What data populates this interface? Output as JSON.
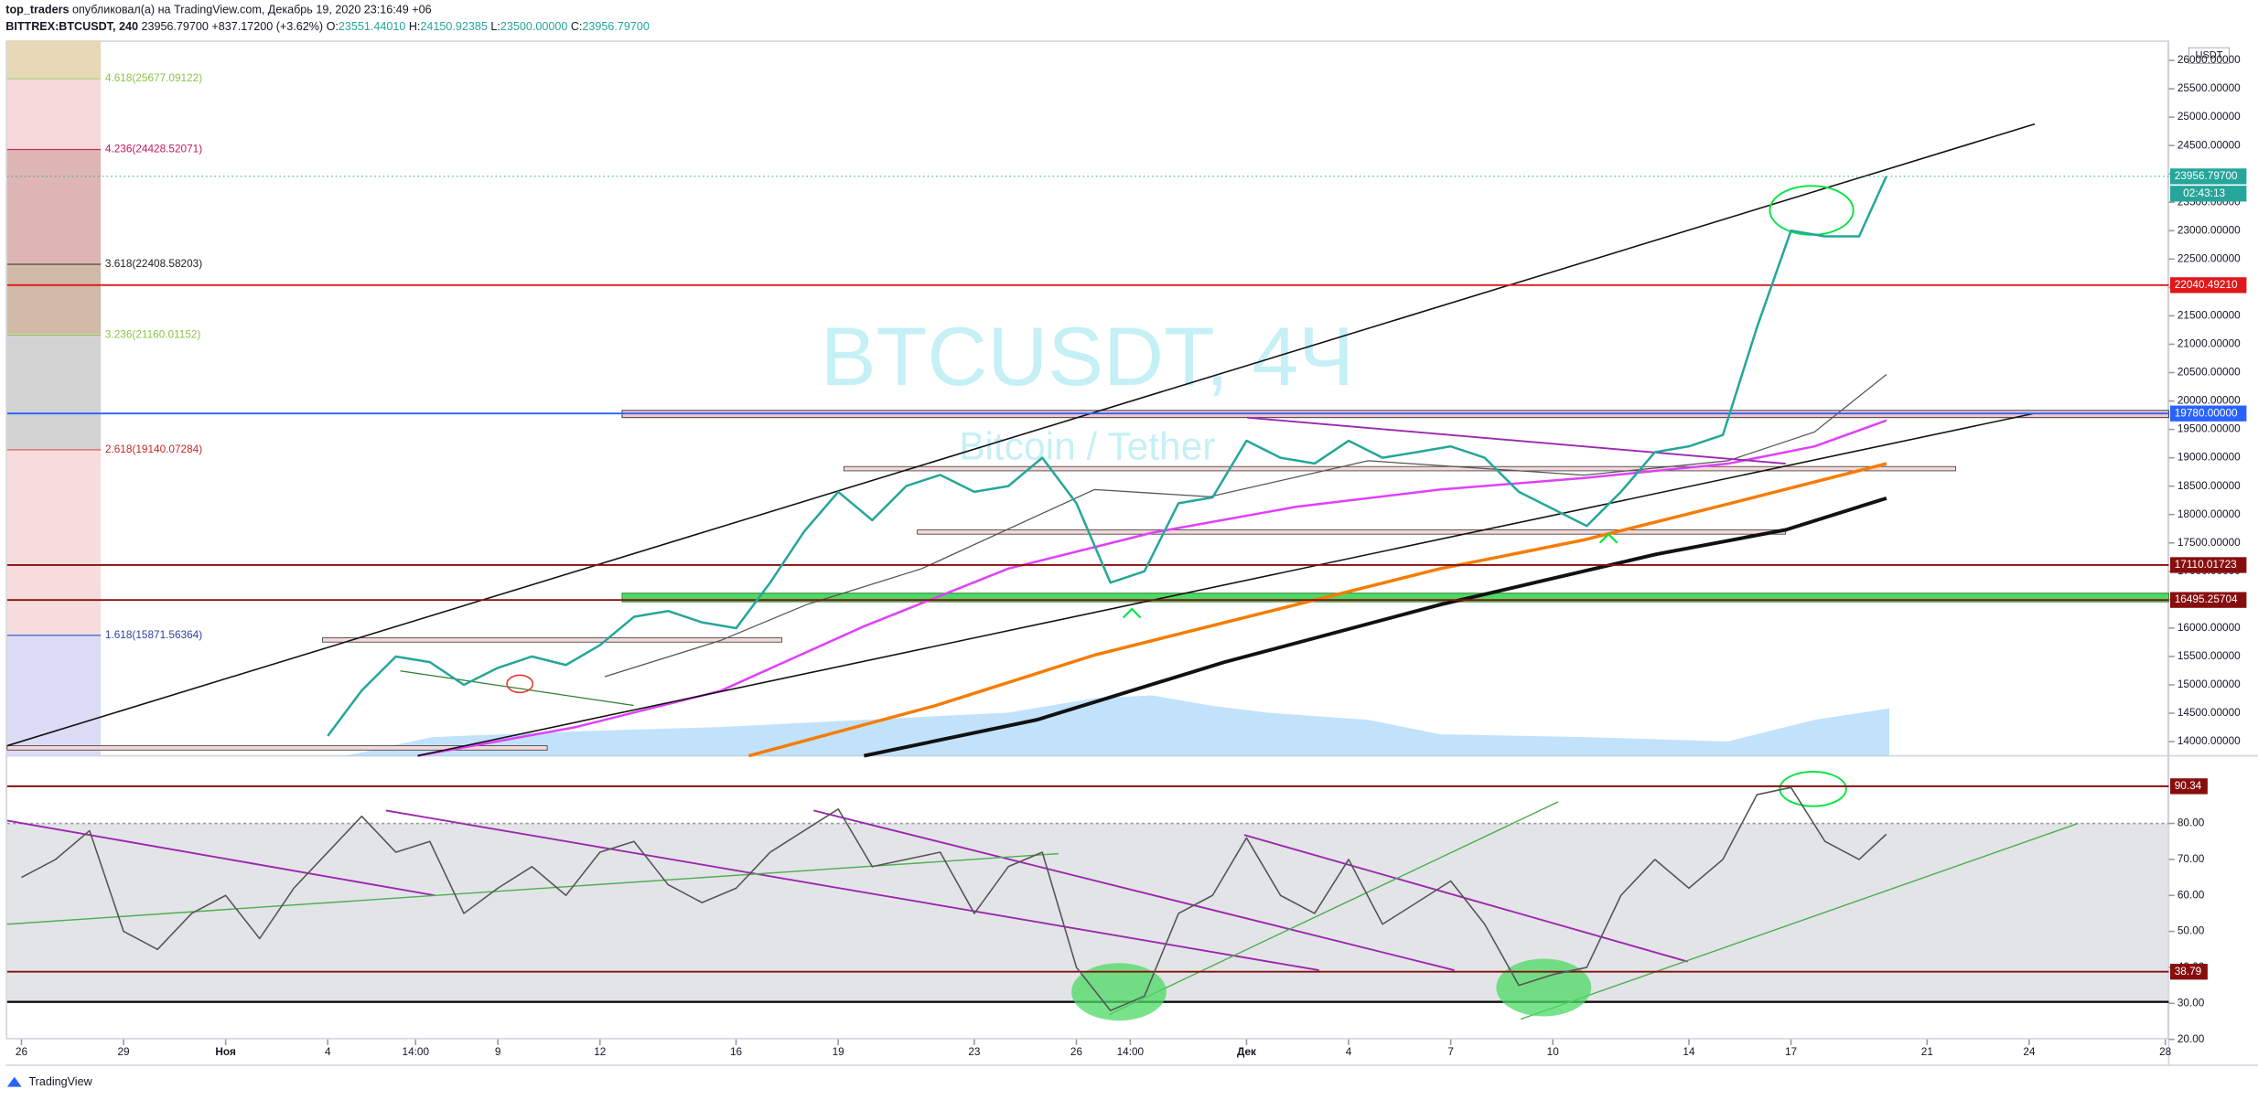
{
  "header": {
    "author": "top_traders",
    "published": "опубликовал(а) на TradingView.com, Декабрь 19, 2020 23:16:49 +06",
    "symbol": "BITTREX:BTCUSDT, 240",
    "last": "23956.79700",
    "change": "+837.17200 (+3.62%)",
    "ohlc": [
      {
        "label": "O:",
        "value": "23551.44010"
      },
      {
        "label": "H:",
        "value": "24150.92385"
      },
      {
        "label": "L:",
        "value": "23500.00000"
      },
      {
        "label": "C:",
        "value": "23956.79700"
      }
    ]
  },
  "watermark": {
    "title": "BTCUSDT, 4Ч",
    "subtitle": "Bitcoin / Tether"
  },
  "footer": {
    "brand": "TradingView"
  },
  "chart_data": [
    {
      "type": "line",
      "currency": "USDT",
      "color": "#26a69a",
      "xlim": [
        25.58,
        89.1
      ],
      "ylim": [
        13750,
        26350
      ],
      "yticks": [
        {
          "value": 14000,
          "label": "14000.00000"
        },
        {
          "value": 14500,
          "label": "14500.00000"
        },
        {
          "value": 15000,
          "label": "15000.00000"
        },
        {
          "value": 15500,
          "label": "15500.00000"
        },
        {
          "value": 16000,
          "label": "16000.00000"
        },
        {
          "value": 16500,
          "label": "16500.00000"
        },
        {
          "value": 17000,
          "label": "17000.00000"
        },
        {
          "value": 17500,
          "label": "17500.00000"
        },
        {
          "value": 18000,
          "label": "18000.00000"
        },
        {
          "value": 18500,
          "label": "18500.00000"
        },
        {
          "value": 19000,
          "label": "19000.00000"
        },
        {
          "value": 19500,
          "label": "19500.00000"
        },
        {
          "value": 20000,
          "label": "20000.00000"
        },
        {
          "value": 20500,
          "label": "20500.00000"
        },
        {
          "value": 21000,
          "label": "21000.00000"
        },
        {
          "value": 21500,
          "label": "21500.00000"
        },
        {
          "value": 22000,
          "label": "22000.00000"
        },
        {
          "value": 22500,
          "label": "22500.00000"
        },
        {
          "value": 23000,
          "label": "23000.00000"
        },
        {
          "value": 23500,
          "label": "23500.00000"
        },
        {
          "value": 24000,
          "label": "24000.00000"
        },
        {
          "value": 24500,
          "label": "24500.00000"
        },
        {
          "value": 25000,
          "label": "25000.00000"
        },
        {
          "value": 25500,
          "label": "25500.00000"
        },
        {
          "value": 26000,
          "label": "26000.00000"
        }
      ],
      "x": [
        35,
        36,
        37,
        38,
        39,
        40,
        41,
        42,
        43,
        44,
        45,
        46,
        47,
        48,
        49,
        50,
        51,
        52,
        53,
        54,
        55,
        56,
        57,
        58,
        59,
        60,
        61,
        62,
        63,
        64,
        65,
        66,
        67,
        68,
        69,
        70,
        71,
        72,
        73,
        74,
        75,
        76,
        77,
        78,
        79,
        80,
        80.8
      ],
      "values": [
        14100,
        14900,
        15500,
        15400,
        15000,
        15300,
        15500,
        15350,
        15700,
        16200,
        16300,
        16100,
        16000,
        16800,
        17700,
        18400,
        17900,
        18500,
        18700,
        18400,
        18500,
        19000,
        18200,
        16800,
        17000,
        18200,
        18300,
        19300,
        19000,
        18900,
        19300,
        19000,
        19100,
        19200,
        19000,
        18400,
        18100,
        17800,
        18400,
        19100,
        19200,
        19400,
        21300,
        23000,
        22900,
        22900,
        23956.797
      ],
      "fib": [
        {
          "label": "4.618(25677.09122)",
          "value": 25677.09122,
          "color": "#8bc34a"
        },
        {
          "label": "4.236(24428.52071)",
          "value": 24428.52071,
          "color": "#c2185b"
        },
        {
          "label": "3.618(22408.58203)",
          "value": 22408.58203,
          "color": "#222222"
        },
        {
          "label": "3.236(21160.01152)",
          "value": 21160.01152,
          "color": "#8bc34a"
        },
        {
          "label": "2.618(19140.07284)",
          "value": 19140.07284,
          "color": "#c62828"
        },
        {
          "label": "1.618(15871.56364)",
          "value": 15871.56364,
          "color": "#303f9f"
        }
      ],
      "badges": [
        {
          "label": "23956.79700",
          "value": 23956.797,
          "color": "#26a69a"
        },
        {
          "label": "22040.49210",
          "value": 22040.4921,
          "color": "#e0171b"
        },
        {
          "label": "19780.00000",
          "value": 19780,
          "color": "#2962ff"
        },
        {
          "label": "17110.01723",
          "value": 17110.01723,
          "color": "#880e0e"
        },
        {
          "label": "16495.25704",
          "value": 16495.25704,
          "color": "#880e0e"
        }
      ],
      "timer": "02:43:13"
    },
    {
      "type": "line",
      "color": "#555555",
      "xlim": [
        25.58,
        89.1
      ],
      "ylim": [
        20,
        97.6
      ],
      "yticks": [
        {
          "value": 20,
          "label": "20.00"
        },
        {
          "value": 30,
          "label": "30.00"
        },
        {
          "value": 40,
          "label": "40.00"
        },
        {
          "value": 50,
          "label": "50.00"
        },
        {
          "value": 60,
          "label": "60.00"
        },
        {
          "value": 70,
          "label": "70.00"
        },
        {
          "value": 80,
          "label": "80.00"
        }
      ],
      "xticks": [
        {
          "value": 26,
          "label": "26"
        },
        {
          "value": 29,
          "label": "29"
        },
        {
          "value": 32,
          "label": "Ноя"
        },
        {
          "value": 35,
          "label": "4"
        },
        {
          "value": 37.583,
          "label": "14:00"
        },
        {
          "value": 40,
          "label": "9"
        },
        {
          "value": 43,
          "label": "12"
        },
        {
          "value": 47,
          "label": "16"
        },
        {
          "value": 50,
          "label": "19"
        },
        {
          "value": 54,
          "label": "23"
        },
        {
          "value": 57,
          "label": "26"
        },
        {
          "value": 58.583,
          "label": "14:00"
        },
        {
          "value": 62,
          "label": "Дек"
        },
        {
          "value": 65,
          "label": "4"
        },
        {
          "value": 68,
          "label": "7"
        },
        {
          "value": 71,
          "label": "10"
        },
        {
          "value": 75,
          "label": "14"
        },
        {
          "value": 78,
          "label": "17"
        },
        {
          "value": 82,
          "label": "21"
        },
        {
          "value": 85,
          "label": "24"
        },
        {
          "value": 89,
          "label": "28"
        }
      ],
      "x": [
        26,
        27,
        28,
        29,
        30,
        31,
        32,
        33,
        34,
        35,
        36,
        37,
        38,
        39,
        40,
        41,
        42,
        43,
        44,
        45,
        46,
        47,
        48,
        49,
        50,
        51,
        52,
        53,
        54,
        55,
        56,
        57,
        58,
        59,
        60,
        61,
        62,
        63,
        64,
        65,
        66,
        67,
        68,
        69,
        70,
        71,
        72,
        73,
        74,
        75,
        76,
        77,
        78,
        79,
        80,
        80.8
      ],
      "values": [
        65,
        70,
        78,
        50,
        45,
        55,
        60,
        48,
        62,
        72,
        82,
        72,
        75,
        55,
        62,
        68,
        60,
        72,
        75,
        63,
        58,
        62,
        72,
        78,
        84,
        68,
        70,
        72,
        55,
        68,
        72,
        40,
        28,
        32,
        55,
        60,
        76,
        60,
        55,
        70,
        52,
        58,
        64,
        52,
        35,
        38,
        40,
        60,
        70,
        62,
        70,
        88,
        90,
        75,
        70,
        77
      ],
      "badges": [
        {
          "label": "90.34",
          "value": 90.34,
          "color": "#880e0e"
        },
        {
          "label": "38.79",
          "value": 38.79,
          "color": "#880e0e"
        }
      ]
    }
  ]
}
